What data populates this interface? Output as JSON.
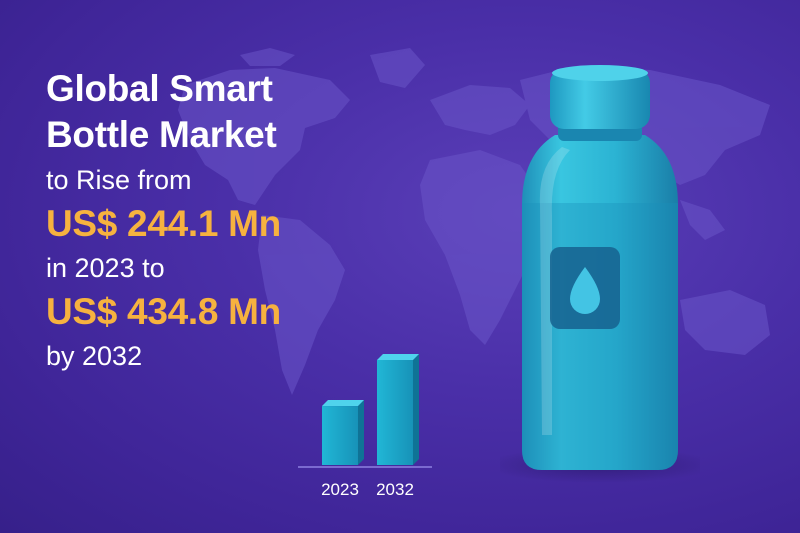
{
  "headline": {
    "title_line1": "Global Smart",
    "title_line2": "Bottle Market",
    "text_rise": "to Rise from",
    "amount_start": "US$ 244.1 Mn",
    "text_year": "in 2023 to",
    "amount_end": "US$ 434.8 Mn",
    "text_by": "by 2032"
  },
  "colors": {
    "background": "#4a2fa8",
    "accent": "#f6b23f",
    "bar": "#1ba9c9",
    "bottle": "#2fb8d4"
  },
  "icons": [
    "world-map",
    "water-drop-icon",
    "bottle-illustration"
  ],
  "chart_data": {
    "type": "bar",
    "categories": [
      "2023",
      "2032"
    ],
    "values": [
      244.1,
      434.8
    ],
    "title": "",
    "xlabel": "",
    "ylabel": "",
    "grid": false,
    "legend": "none"
  }
}
